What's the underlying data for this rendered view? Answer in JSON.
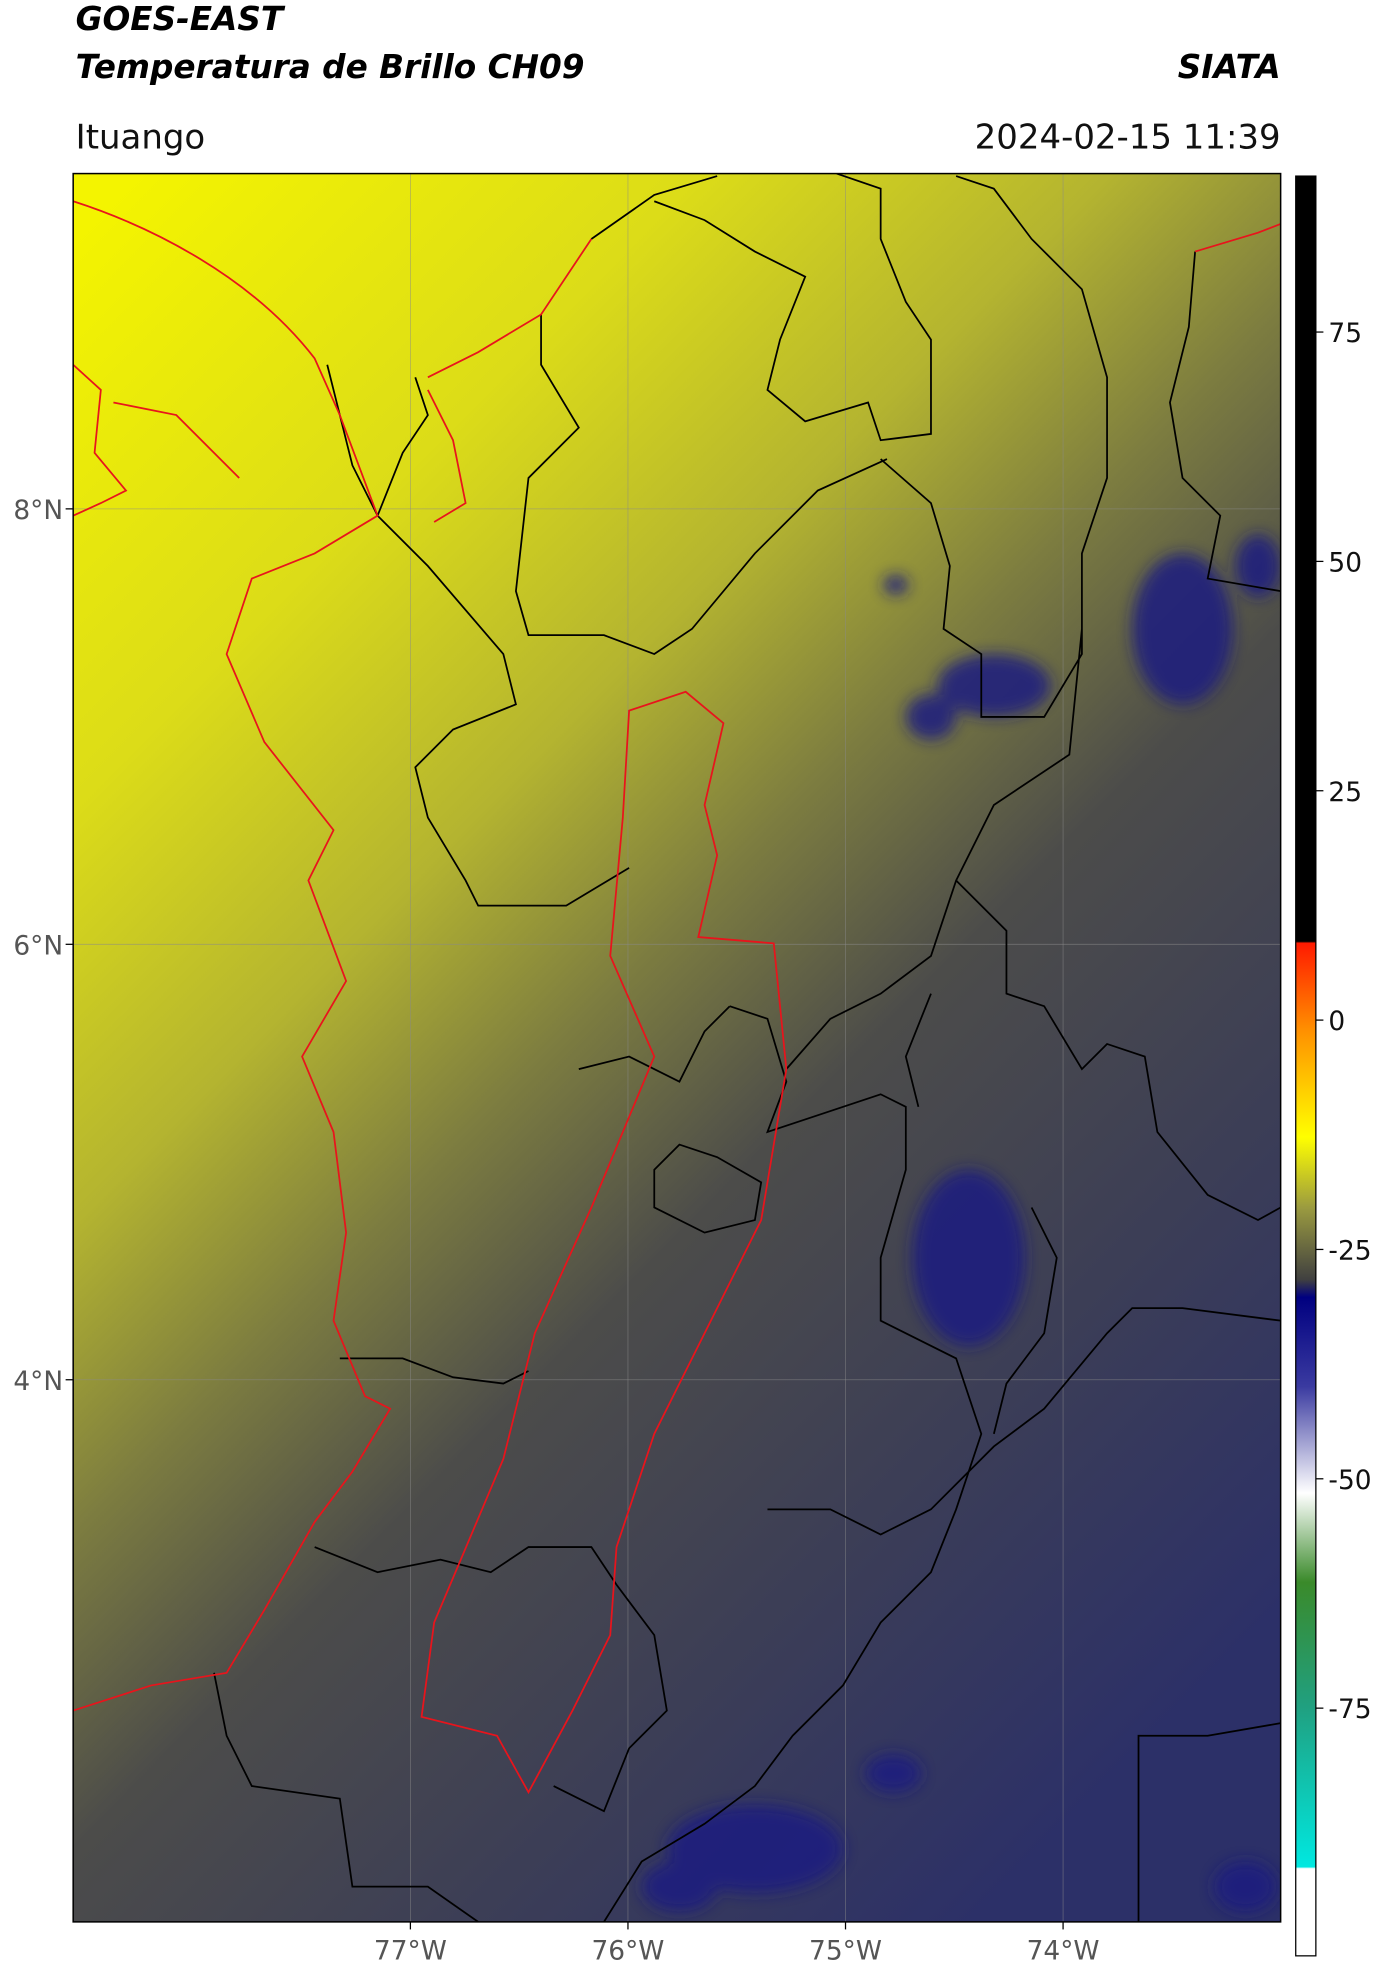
{
  "header": {
    "title": "GOES-EAST",
    "subtitle": "Temperatura de Brillo CH09",
    "source": "SIATA",
    "location": "Ituango",
    "datetime": "2024-02-15 11:39"
  },
  "map": {
    "lon_range": [
      -78.55,
      -73.0
    ],
    "lat_range": [
      1.51,
      9.54
    ],
    "lon_ticks": [
      {
        "value": -77,
        "label": "77°W"
      },
      {
        "value": -76,
        "label": "76°W"
      },
      {
        "value": -75,
        "label": "75°W"
      },
      {
        "value": -74,
        "label": "74°W"
      }
    ],
    "lat_ticks": [
      {
        "value": 8,
        "label": "8°N"
      },
      {
        "value": 6,
        "label": "6°N"
      },
      {
        "value": 4,
        "label": "4°N"
      }
    ]
  },
  "colorbar": {
    "range": [
      -102,
      92
    ],
    "ticks": [
      75,
      50,
      25,
      0,
      -25,
      -50,
      -75
    ]
  }
}
